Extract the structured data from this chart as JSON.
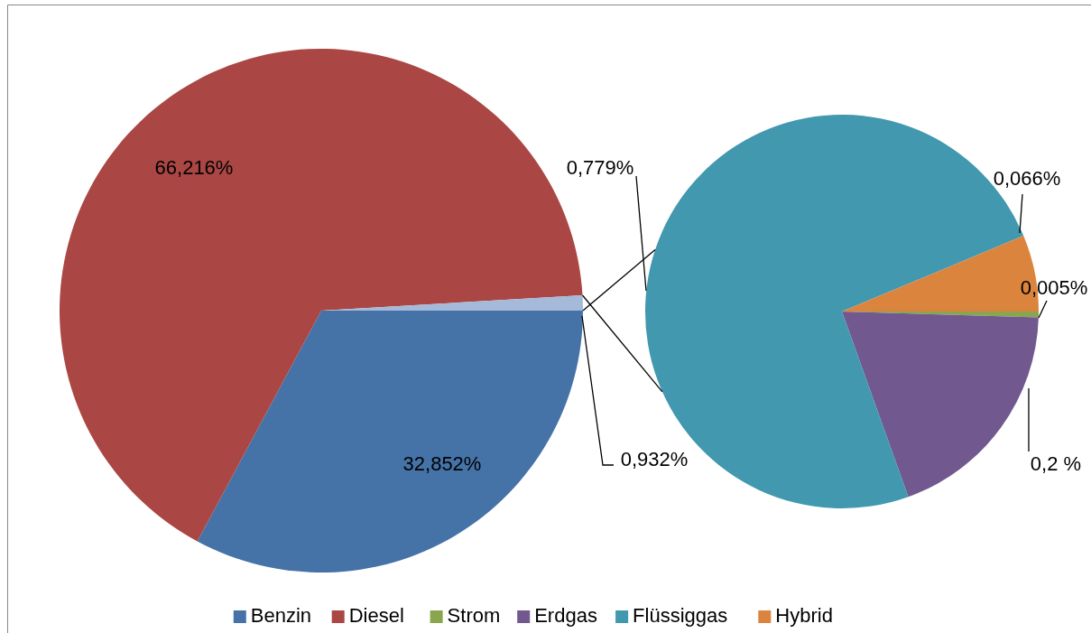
{
  "chart_data": [
    {
      "type": "pie",
      "categories": [
        "Benzin",
        "Diesel",
        null
      ],
      "values": [
        32.852,
        66.216,
        0.932
      ],
      "colors": [
        "#4572a7",
        "#aa4643",
        "#a5b9d9"
      ],
      "value_labels": [
        "32,852%",
        "66,216%",
        "0,932%"
      ],
      "legend": "bottom"
    },
    {
      "type": "pie",
      "categories": [
        "Strom",
        "Erdgas",
        "Flüssiggas",
        "Hybrid"
      ],
      "values": [
        0.005,
        0.2,
        0.779,
        0.066
      ],
      "colors": [
        "#89a54e",
        "#71588f",
        "#4198af",
        "#db843d"
      ],
      "value_labels": [
        "0,005%",
        "0,2 %",
        "0,779%",
        "0,066%"
      ],
      "legend": "bottom"
    }
  ]
}
